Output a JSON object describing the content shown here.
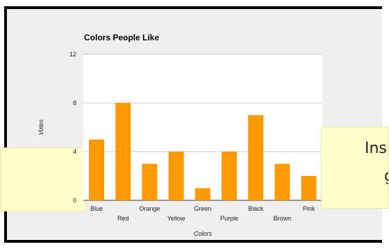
{
  "colors": {
    "bar": "#ff9900",
    "grid": "#cccccc",
    "plot_bg": "#ffffff",
    "note_bg": "#ffffcc"
  },
  "notes": {
    "right_line1": "Ins",
    "right_line2": "g"
  },
  "chart_data": {
    "type": "bar",
    "title": "Colors People Like",
    "xlabel": "Colors",
    "ylabel": "Votes",
    "categories": [
      "Blue",
      "Red",
      "Orange",
      "Yellow",
      "Green",
      "Purple",
      "Black",
      "Brown",
      "Pink"
    ],
    "values": [
      5,
      8,
      3,
      4,
      1,
      4,
      7,
      3,
      2
    ],
    "ylim": [
      0,
      12
    ],
    "yticks": [
      0,
      4,
      8,
      12
    ],
    "grid": true,
    "legend": "none"
  }
}
